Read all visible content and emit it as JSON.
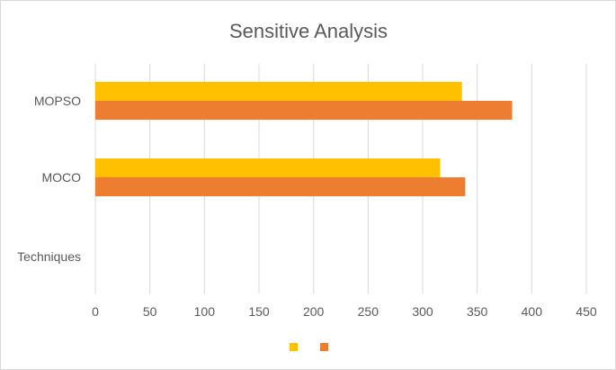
{
  "chart_data": {
    "type": "bar",
    "orientation": "horizontal",
    "title": "Sensitive Analysis",
    "categories": [
      "Techniques",
      "MOCO",
      "MOPSO"
    ],
    "series": [
      {
        "values": [
          null,
          316,
          336
        ],
        "color": "#FFC000"
      },
      {
        "values": [
          null,
          339,
          382
        ],
        "color": "#ED7D31"
      }
    ],
    "xlim": [
      0,
      450
    ],
    "xticks": [
      0,
      50,
      100,
      150,
      200,
      250,
      300,
      350,
      400,
      450
    ],
    "grid": "vertical",
    "legend": "bottom"
  }
}
